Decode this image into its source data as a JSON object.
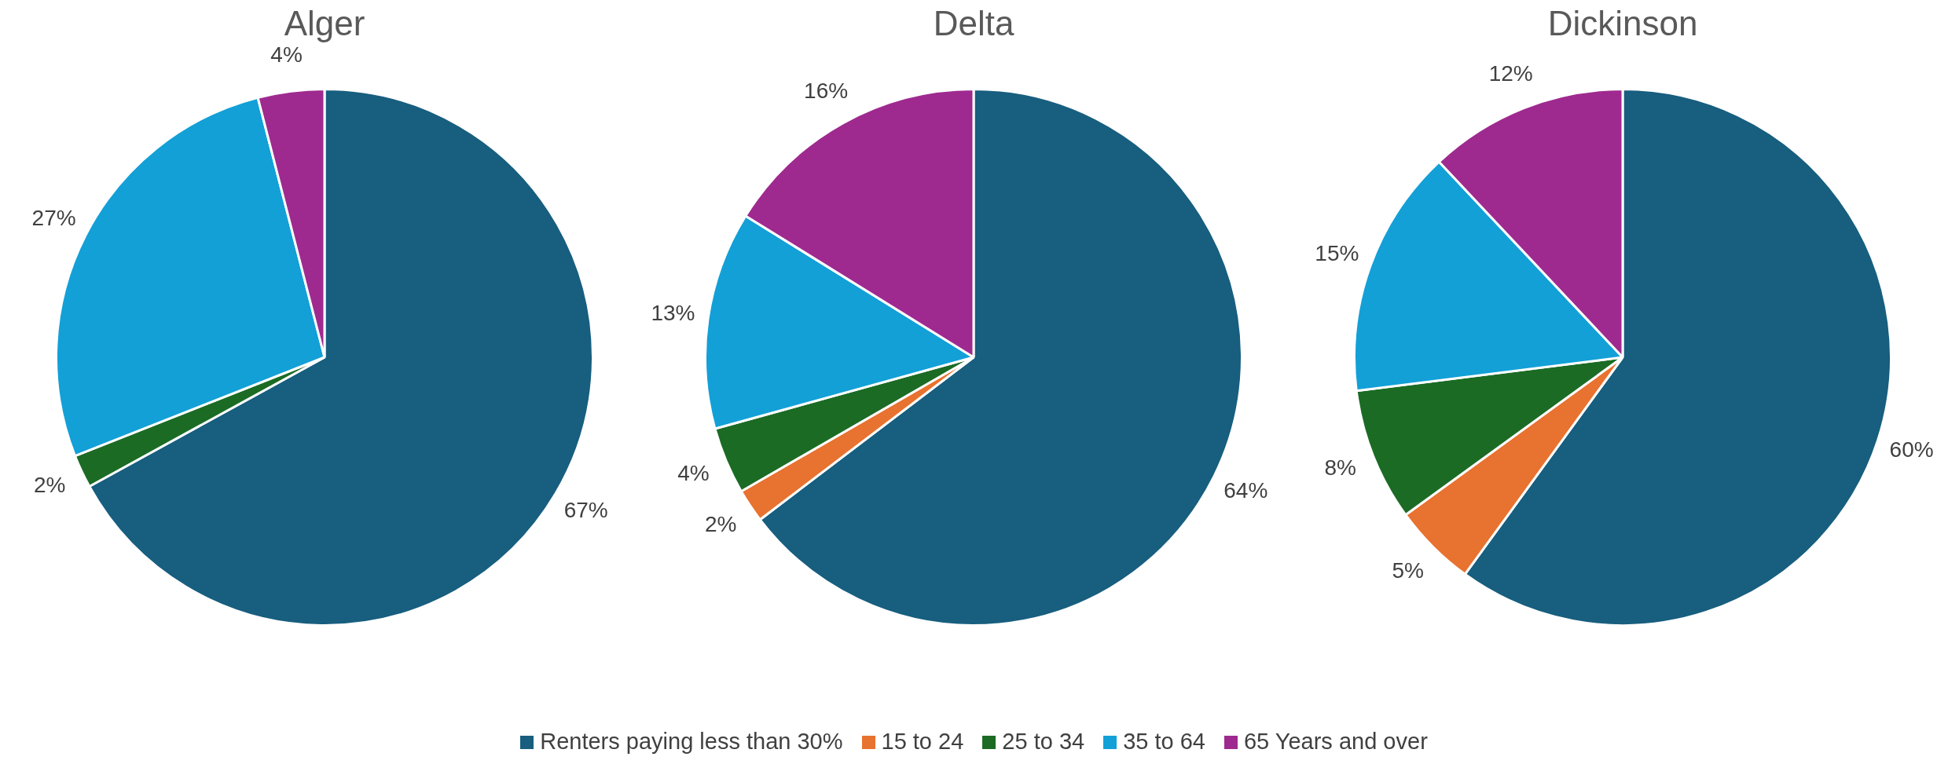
{
  "chart_data": [
    {
      "type": "pie",
      "title": "Alger",
      "categories": [
        "Renters paying less than 30%",
        "15 to 24",
        "25 to 34",
        "35 to 64",
        "65 Years and over"
      ],
      "values": [
        67,
        0,
        2,
        27,
        4
      ],
      "value_labels": [
        "67%",
        null,
        "2%",
        "27%",
        "4%"
      ],
      "colors": [
        "#175e7f",
        "#e8722f",
        "#1b6b25",
        "#12a0d7",
        "#9e2a8f"
      ],
      "legend": "bottom"
    },
    {
      "type": "pie",
      "title": "Delta",
      "categories": [
        null,
        null,
        null,
        null,
        null
      ],
      "values": [
        64,
        2,
        4,
        13,
        16
      ],
      "value_labels": [
        "64%",
        "2%",
        "4%",
        "13%",
        "16%"
      ],
      "colors": [
        "#175e7f",
        "#e8722f",
        "#1b6b25",
        "#12a0d7",
        "#9e2a8f"
      ]
    },
    {
      "type": "pie",
      "title": "Dickinson",
      "categories": [
        null,
        null,
        null,
        null,
        null
      ],
      "values": [
        60,
        5,
        8,
        15,
        12
      ],
      "value_labels": [
        "60%",
        "5%",
        "8%",
        "15%",
        "12%"
      ],
      "colors": [
        "#175e7f",
        "#e8722f",
        "#1b6b25",
        "#12a0d7",
        "#9e2a8f"
      ]
    }
  ]
}
